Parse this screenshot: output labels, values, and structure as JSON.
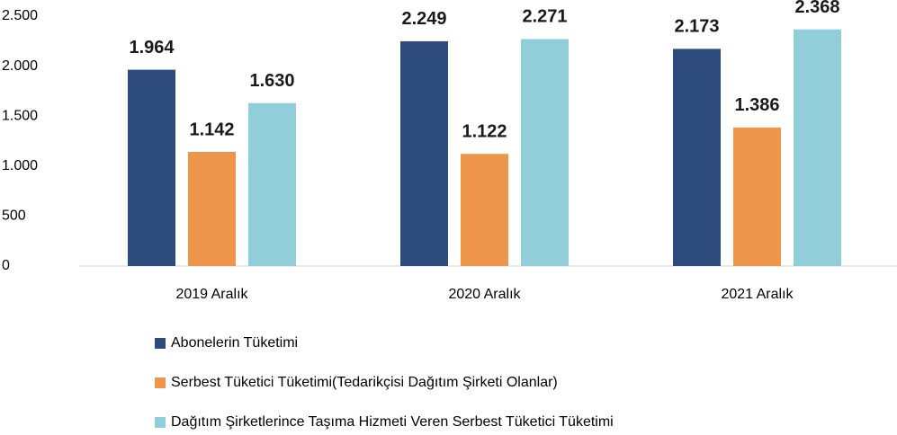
{
  "chart_data": {
    "type": "bar",
    "categories": [
      "2019 Aralık",
      "2020 Aralık",
      "2021 Aralık"
    ],
    "series": [
      {
        "name": "Abonelerin Tüketimi",
        "color": "#2e4b7e",
        "values": [
          1964,
          2249,
          2173
        ],
        "value_labels": [
          "1.964",
          "2.249",
          "2.173"
        ]
      },
      {
        "name": "Serbest Tüketici Tüketimi(Tedarikçisi Dağıtım Şirketi Olanlar)",
        "color": "#ed954a",
        "values": [
          1142,
          1122,
          1386
        ],
        "value_labels": [
          "1.142",
          "1.122",
          "1.386"
        ]
      },
      {
        "name": "Dağıtım Şirketlerince Taşıma Hizmeti Veren Serbest Tüketici Tüketimi",
        "color": "#92cdda",
        "values": [
          1630,
          2271,
          2368
        ],
        "value_labels": [
          "1.630",
          "2.271",
          "2.368"
        ]
      }
    ],
    "ylim": [
      0,
      2500
    ],
    "yticks": [
      0,
      500,
      {
        "value": 1000,
        "label": "1.000"
      },
      {
        "value": 1500,
        "label": "1.500"
      },
      {
        "value": 2000,
        "label": "2.000"
      },
      {
        "value": 2500,
        "label": "2.500"
      }
    ],
    "grid": false,
    "legend": "bottom"
  }
}
